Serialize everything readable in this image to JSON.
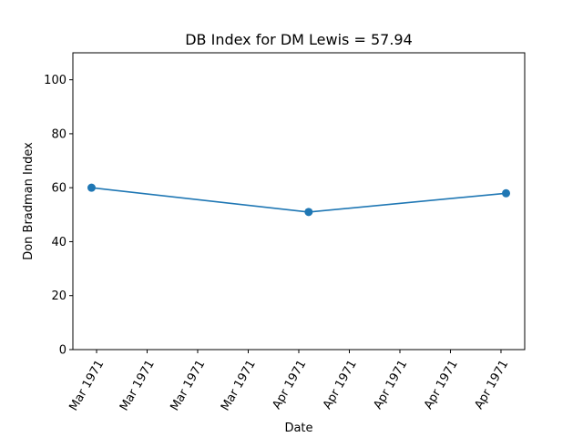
{
  "chart_data": {
    "type": "line",
    "title": "DB Index for DM Lewis = 57.94",
    "xlabel": "Date",
    "ylabel": "Don Bradman Index",
    "x": [
      "1971-02-26",
      "1971-03-31",
      "1971-04-30"
    ],
    "series": [
      {
        "values": [
          60,
          51,
          57.94
        ],
        "color": "#1f77b4"
      }
    ],
    "ylim": [
      0,
      110
    ],
    "yticks": [
      0,
      20,
      40,
      60,
      80,
      100
    ],
    "xtick_labels": [
      "Mar 1971",
      "Mar 1971",
      "Mar 1971",
      "Mar 1971",
      "Apr 1971",
      "Apr 1971",
      "Apr 1971",
      "Apr 1971",
      "Apr 1971"
    ],
    "grid": false,
    "legend": "none"
  }
}
